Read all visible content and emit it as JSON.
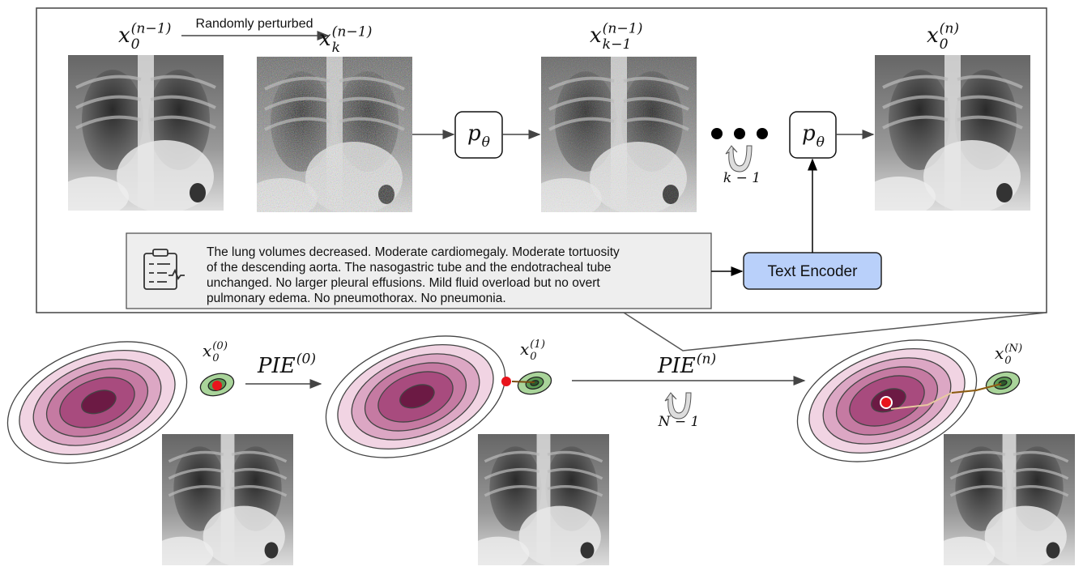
{
  "top_panel": {
    "perturb_label": "Randomly perturbed",
    "image_labels": [
      {
        "base": "x",
        "sub": "0",
        "sup": "(n−1)"
      },
      {
        "base": "x",
        "sub": "k",
        "sup": "(n−1)"
      },
      {
        "base": "x",
        "sub": "k−1",
        "sup": "(n−1)"
      },
      {
        "base": "x",
        "sub": "0",
        "sup": "(n)"
      }
    ],
    "denoiser_labels": [
      {
        "base": "p",
        "sub": "θ"
      },
      {
        "base": "p",
        "sub": "θ"
      }
    ],
    "repeat_label": "k − 1",
    "text_encoder": "Text Encoder",
    "report_lines": [
      "The lung volumes decreased. Moderate cardiomegaly. Moderate tortuosity",
      "of the descending aorta. The nasogastric tube and the endotracheal tube",
      "unchanged. No larger pleural effusions. Mild fluid overload but no overt",
      "pulmonary edema. No pneumothorax. No pneumonia."
    ]
  },
  "bottom_panel": {
    "state_labels": [
      {
        "base": "x",
        "sub": "0",
        "sup": "(0)"
      },
      {
        "base": "x",
        "sub": "0",
        "sup": "(1)"
      },
      {
        "base": "x",
        "sub": "0",
        "sup": "(N)"
      }
    ],
    "step_labels": [
      {
        "base": "PIE",
        "sup": "(0)"
      },
      {
        "base": "PIE",
        "sup": "(n)"
      }
    ],
    "repeat_label": "N − 1"
  }
}
